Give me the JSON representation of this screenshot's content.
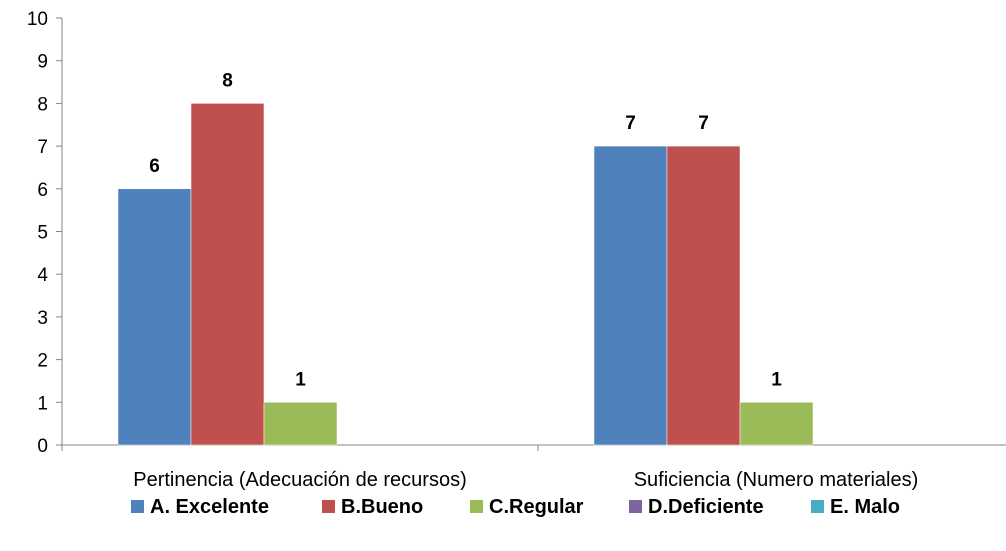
{
  "chart_data": {
    "type": "bar",
    "categories": [
      "Pertinencia (Adecuación de recursos)",
      "Suficiencia (Numero materiales)"
    ],
    "series": [
      {
        "name": "A. Excelente",
        "values": [
          6,
          7
        ],
        "color": "#4f81bd"
      },
      {
        "name": "B.Bueno",
        "values": [
          8,
          7
        ],
        "color": "#c0504d"
      },
      {
        "name": "C.Regular",
        "values": [
          1,
          1
        ],
        "color": "#9bbb59"
      },
      {
        "name": "D.Deficiente",
        "values": [
          0,
          0
        ],
        "color": "#8064a2"
      },
      {
        "name": "E. Malo",
        "values": [
          0,
          0
        ],
        "color": "#4bacc6"
      }
    ],
    "ylim": [
      0,
      10
    ],
    "yticks": [
      "0",
      "1",
      "2",
      "3",
      "4",
      "5",
      "6",
      "7",
      "8",
      "9",
      "10"
    ],
    "grid": false,
    "legend_position": "bottom",
    "data_labels": true
  }
}
